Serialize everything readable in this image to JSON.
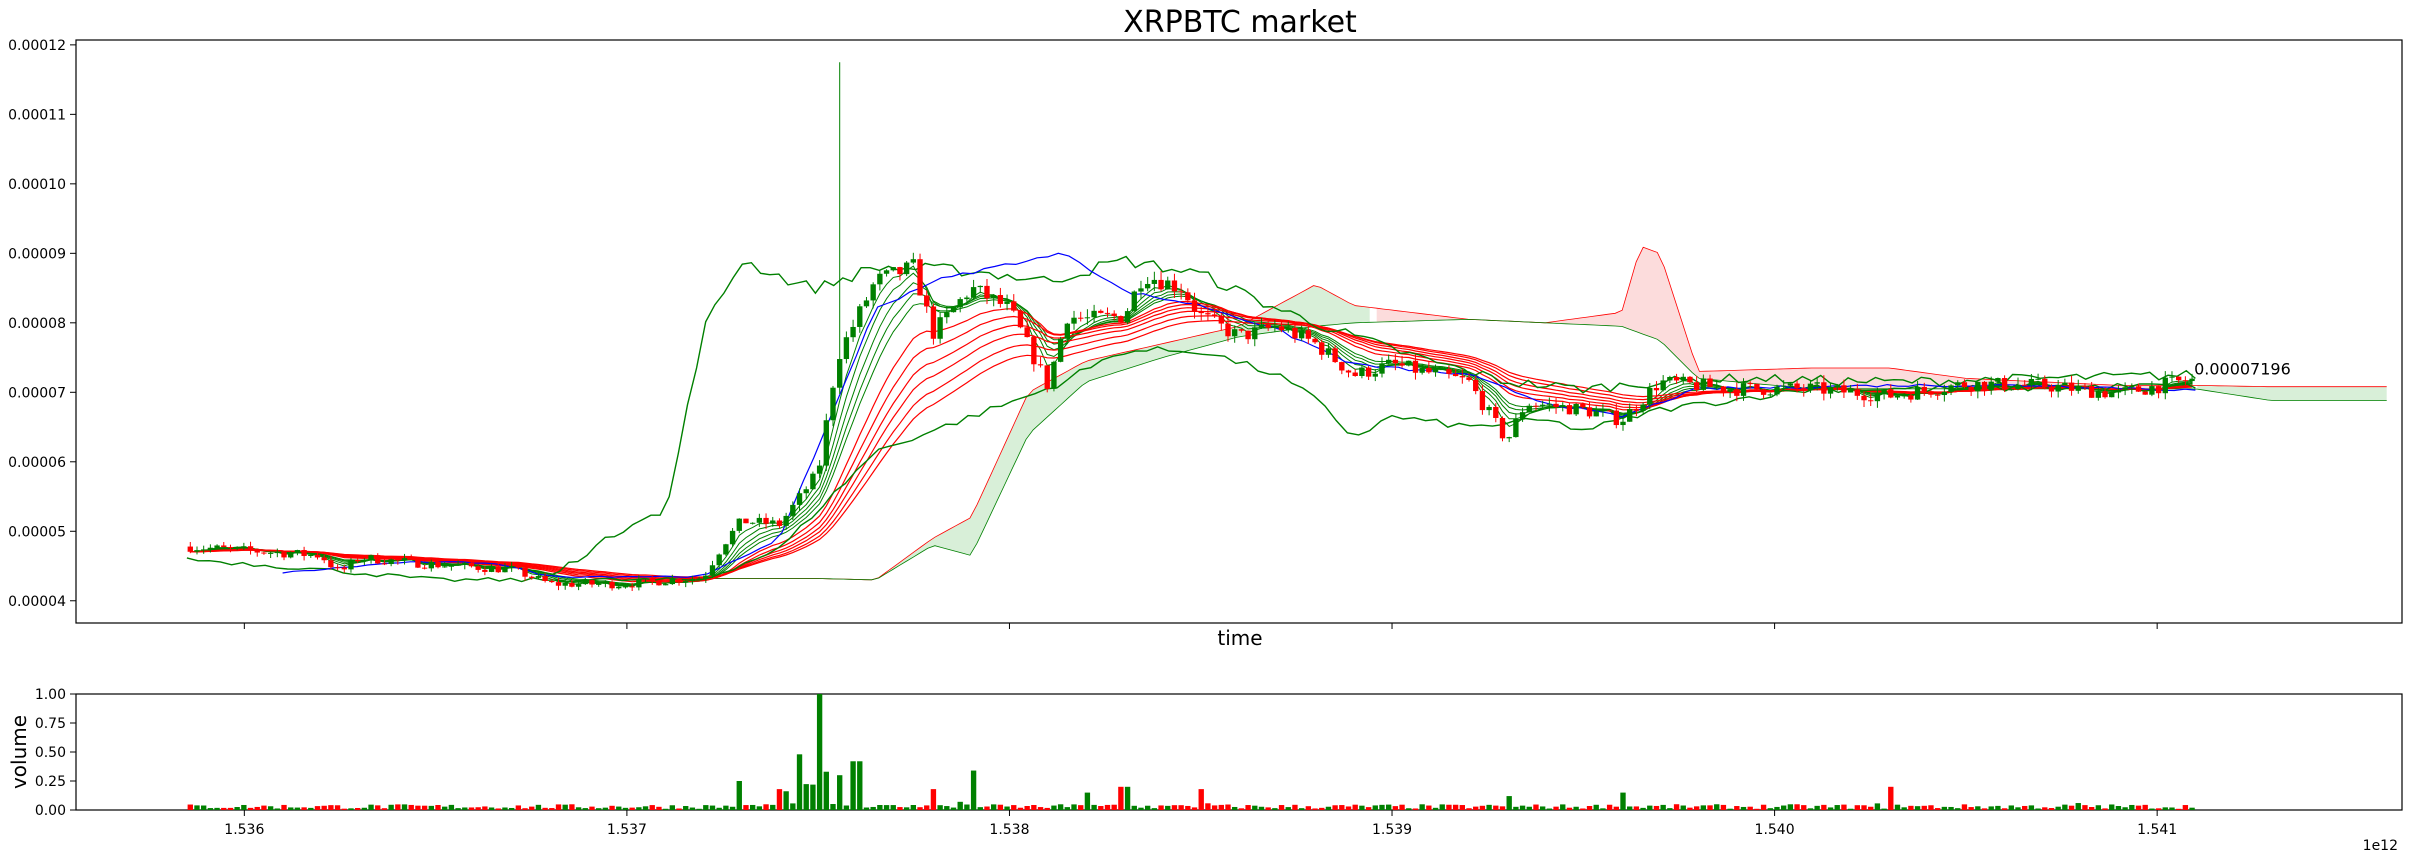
{
  "chart_data": [
    {
      "type": "candlestick",
      "title": "XRPBTC market",
      "xlabel": "time",
      "ylabel": "",
      "x_offset_label": "1e12",
      "x_tick_labels": [
        "1.536",
        "1.537",
        "1.538",
        "1.539",
        "1.540",
        "1.541"
      ],
      "x_tick_values": [
        1.536,
        1.537,
        1.538,
        1.539,
        1.54,
        1.541
      ],
      "xlim": [
        1.53556,
        1.54164
      ],
      "y_tick_labels": [
        "0.00004",
        "0.00005",
        "0.00006",
        "0.00007",
        "0.00008",
        "0.00009",
        "0.00010",
        "0.00011",
        "0.00012"
      ],
      "y_tick_values": [
        4e-05,
        5e-05,
        6e-05,
        7e-05,
        8e-05,
        9e-05,
        0.0001,
        0.00011,
        0.00012
      ],
      "ylim": [
        3.68e-05,
        0.0001207
      ],
      "last_price_label": "0.00007196",
      "last_price": 7.196e-05,
      "colors": {
        "up": "#008000",
        "down": "#ff0000",
        "mid_line": "#0000ff",
        "cloud_up": "#d8efd8",
        "cloud_down": "#fcdcdc"
      },
      "price_anchor_points": [
        [
          1.53585,
          4.78e-05
        ],
        [
          1.5362,
          4.65e-05
        ],
        [
          1.53625,
          4.4e-05
        ],
        [
          1.5363,
          4.62e-05
        ],
        [
          1.5365,
          4.52e-05
        ],
        [
          1.5367,
          4.45e-05
        ],
        [
          1.5368,
          4.24e-05
        ],
        [
          1.537,
          4.24e-05
        ],
        [
          1.5372,
          4.34e-05
        ],
        [
          1.53725,
          4.8e-05
        ],
        [
          1.5373,
          5.15e-05
        ],
        [
          1.5374,
          5.1e-05
        ],
        [
          1.5375,
          5.85e-05
        ],
        [
          1.53755,
          7.5e-05
        ],
        [
          1.53765,
          8.6e-05
        ],
        [
          1.53775,
          8.8e-05
        ],
        [
          1.5378,
          7.85e-05
        ],
        [
          1.5379,
          8.5e-05
        ],
        [
          1.538,
          8.2e-05
        ],
        [
          1.5381,
          7.1e-05
        ],
        [
          1.53815,
          8.1e-05
        ],
        [
          1.5382,
          8.05e-05
        ],
        [
          1.5383,
          8.1e-05
        ],
        [
          1.53835,
          8.7e-05
        ],
        [
          1.53845,
          8.5e-05
        ],
        [
          1.5385,
          8.1e-05
        ],
        [
          1.5386,
          7.8e-05
        ],
        [
          1.5387,
          7.95e-05
        ],
        [
          1.5388,
          7.7e-05
        ],
        [
          1.5389,
          7.25e-05
        ],
        [
          1.539,
          7.4e-05
        ],
        [
          1.5392,
          7.15e-05
        ],
        [
          1.5393,
          6.3e-05
        ],
        [
          1.53935,
          6.85e-05
        ],
        [
          1.5395,
          6.75e-05
        ],
        [
          1.5396,
          6.6e-05
        ],
        [
          1.5397,
          7.15e-05
        ],
        [
          1.5399,
          7.05e-05
        ],
        [
          1.5401,
          7.05e-05
        ],
        [
          1.5403,
          6.95e-05
        ],
        [
          1.5405,
          7.12e-05
        ],
        [
          1.5407,
          7.1e-05
        ],
        [
          1.5409,
          6.98e-05
        ],
        [
          1.5411,
          7.196e-05
        ]
      ],
      "upper_band_anchor_points": [
        [
          1.5368,
          4.35e-05
        ],
        [
          1.53705,
          5.25e-05
        ],
        [
          1.5371,
          5.2e-05
        ],
        [
          1.5372,
          7.9e-05
        ],
        [
          1.5373,
          8.9e-05
        ],
        [
          1.53745,
          8.55e-05
        ],
        [
          1.5375,
          8.5e-05
        ],
        [
          1.53765,
          8.8e-05
        ],
        [
          1.5379,
          8.75e-05
        ],
        [
          1.5381,
          8.6e-05
        ],
        [
          1.5383,
          8.9e-05
        ],
        [
          1.5385,
          8.7e-05
        ],
        [
          1.5387,
          8.2e-05
        ],
        [
          1.5389,
          7.8e-05
        ],
        [
          1.5391,
          7.45e-05
        ],
        [
          1.5393,
          7.15e-05
        ],
        [
          1.5395,
          7.05e-05
        ],
        [
          1.5397,
          7.15e-05
        ],
        [
          1.5399,
          7.2e-05
        ],
        [
          1.5403,
          7.15e-05
        ],
        [
          1.5407,
          7.2e-05
        ],
        [
          1.5411,
          7.25e-05
        ]
      ],
      "lower_band_anchor_points": [
        [
          1.53585,
          4.6e-05
        ],
        [
          1.5362,
          4.45e-05
        ],
        [
          1.5365,
          4.3e-05
        ],
        [
          1.5369,
          4.3e-05
        ],
        [
          1.5372,
          4.3e-05
        ],
        [
          1.5374,
          4.75e-05
        ],
        [
          1.53765,
          6.15e-05
        ],
        [
          1.5381,
          7.05e-05
        ],
        [
          1.5383,
          7.6e-05
        ],
        [
          1.5385,
          7.6e-05
        ],
        [
          1.5387,
          7.25e-05
        ],
        [
          1.5388,
          6.9e-05
        ],
        [
          1.5389,
          6.35e-05
        ],
        [
          1.539,
          6.65e-05
        ],
        [
          1.5392,
          6.5e-05
        ],
        [
          1.5394,
          6.6e-05
        ],
        [
          1.5395,
          6.45e-05
        ],
        [
          1.5397,
          6.75e-05
        ],
        [
          1.5401,
          7.05e-05
        ],
        [
          1.5405,
          7.05e-05
        ],
        [
          1.5411,
          7.1e-05
        ]
      ],
      "mid_line_anchor_points": [
        [
          1.5361,
          4.4e-05
        ],
        [
          1.5364,
          4.55e-05
        ],
        [
          1.53665,
          4.55e-05
        ],
        [
          1.5368,
          4.35e-05
        ],
        [
          1.5372,
          4.35e-05
        ],
        [
          1.5374,
          4.9e-05
        ],
        [
          1.53765,
          8.2e-05
        ],
        [
          1.5378,
          8.6e-05
        ],
        [
          1.538,
          8.85e-05
        ],
        [
          1.53815,
          9e-05
        ],
        [
          1.5383,
          8.45e-05
        ],
        [
          1.5385,
          8.25e-05
        ],
        [
          1.5387,
          7.9e-05
        ],
        [
          1.5389,
          7.4e-05
        ],
        [
          1.5392,
          7.25e-05
        ],
        [
          1.5394,
          6.85e-05
        ],
        [
          1.5396,
          6.65e-05
        ],
        [
          1.5398,
          7.05e-05
        ],
        [
          1.5403,
          7.1e-05
        ],
        [
          1.5407,
          7.1e-05
        ],
        [
          1.5411,
          7.03e-05
        ]
      ],
      "cloud_top_anchor_points": [
        [
          1.5372,
          4.32e-05
        ],
        [
          1.5375,
          4.32e-05
        ],
        [
          1.53765,
          4.3e-05
        ],
        [
          1.5378,
          4.9e-05
        ],
        [
          1.5379,
          5.2e-05
        ],
        [
          1.53805,
          7e-05
        ],
        [
          1.5382,
          7.45e-05
        ],
        [
          1.5384,
          7.7e-05
        ],
        [
          1.5386,
          7.95e-05
        ],
        [
          1.5388,
          8.55e-05
        ],
        [
          1.5389,
          8.25e-05
        ],
        [
          1.5392,
          8.05e-05
        ],
        [
          1.5394,
          8e-05
        ],
        [
          1.5396,
          8.15e-05
        ],
        [
          1.53965,
          9.1e-05
        ],
        [
          1.5397,
          9e-05
        ],
        [
          1.5398,
          7.3e-05
        ],
        [
          1.5401,
          7.35e-05
        ],
        [
          1.5403,
          7.35e-05
        ],
        [
          1.5405,
          7.2e-05
        ],
        [
          1.5409,
          7.1e-05
        ],
        [
          1.5411,
          7.1e-05
        ],
        [
          1.5413,
          7.08e-05
        ],
        [
          1.5416,
          7.08e-05
        ]
      ],
      "cloud_bottom_anchor_points": [
        [
          1.5372,
          4.32e-05
        ],
        [
          1.5375,
          4.32e-05
        ],
        [
          1.53765,
          4.3e-05
        ],
        [
          1.5378,
          4.8e-05
        ],
        [
          1.5379,
          4.65e-05
        ],
        [
          1.53805,
          6.4e-05
        ],
        [
          1.5382,
          7.15e-05
        ],
        [
          1.5384,
          7.5e-05
        ],
        [
          1.5386,
          7.8e-05
        ],
        [
          1.5388,
          7.95e-05
        ],
        [
          1.5389,
          8e-05
        ],
        [
          1.5392,
          8.05e-05
        ],
        [
          1.5394,
          8e-05
        ],
        [
          1.5396,
          7.95e-05
        ],
        [
          1.5397,
          7.75e-05
        ],
        [
          1.5398,
          7.2e-05
        ],
        [
          1.5401,
          7.05e-05
        ],
        [
          1.5403,
          7.05e-05
        ],
        [
          1.5405,
          7.05e-05
        ],
        [
          1.5409,
          7.05e-05
        ],
        [
          1.5411,
          7.05e-05
        ],
        [
          1.5413,
          6.88e-05
        ],
        [
          1.5416,
          6.88e-05
        ]
      ],
      "grid": false,
      "legend": "none"
    },
    {
      "type": "bar",
      "xlabel": "",
      "ylabel": "volume",
      "x_tick_labels": [
        "1.536",
        "1.537",
        "1.538",
        "1.539",
        "1.540",
        "1.541"
      ],
      "x_tick_values": [
        1.536,
        1.537,
        1.538,
        1.539,
        1.54,
        1.541
      ],
      "y_tick_labels": [
        "0.00",
        "0.25",
        "0.50",
        "0.75",
        "1.00"
      ],
      "y_tick_values": [
        0.0,
        0.25,
        0.5,
        0.75,
        1.0
      ],
      "ylim": [
        0.0,
        1.0
      ],
      "volume_peaks": [
        [
          1.5373,
          0.25
        ],
        [
          1.5374,
          0.18
        ],
        [
          1.53745,
          0.48
        ],
        [
          1.5375,
          1.0
        ],
        [
          1.53755,
          0.3
        ],
        [
          1.5376,
          0.42
        ],
        [
          1.5378,
          0.18
        ],
        [
          1.5379,
          0.34
        ],
        [
          1.5382,
          0.15
        ],
        [
          1.5383,
          0.2
        ],
        [
          1.5385,
          0.18
        ],
        [
          1.5393,
          0.12
        ],
        [
          1.5396,
          0.15
        ],
        [
          1.5403,
          0.2
        ],
        [
          1.5408,
          0.06
        ]
      ],
      "grid": false,
      "legend": "none"
    }
  ]
}
